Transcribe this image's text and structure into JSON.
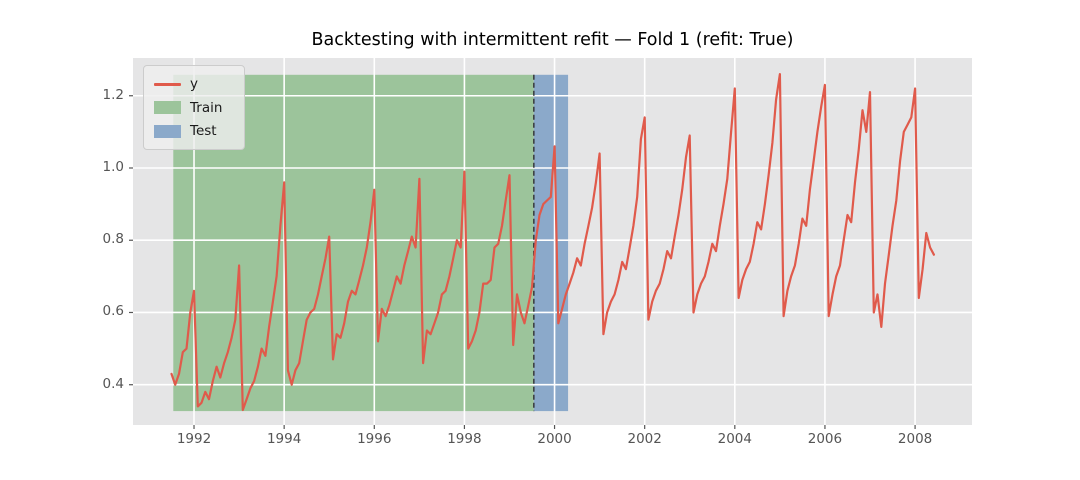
{
  "title": "Backtesting with intermittent refit — Fold 1 (refit: True)",
  "colors": {
    "figure_bg": "#ffffff",
    "plot_bg": "#e5e5e6",
    "grid": "#ffffff",
    "series": "#e05a4b",
    "train_region": "#9cc49b",
    "test_region": "#8ba9ca",
    "vline": "#3c4043",
    "tick_label": "#555555",
    "tick_mark": "#555555",
    "title_text": "#000000",
    "legend_bg": "#eeeeee",
    "legend_border": "#cccccc"
  },
  "legend": {
    "items": [
      {
        "label": "y",
        "swatch": "line",
        "color": "#e05a4b"
      },
      {
        "label": "Train",
        "swatch": "patch",
        "color": "#9cc49b"
      },
      {
        "label": "Test",
        "swatch": "patch",
        "color": "#8ba9ca"
      }
    ]
  },
  "chart_data": {
    "type": "line",
    "title": "Backtesting with intermittent refit — Fold 1 (refit: True)",
    "grid": true,
    "x_axis": {
      "ticks": [
        1992,
        1994,
        1996,
        1998,
        2000,
        2002,
        2004,
        2006,
        2008
      ],
      "lim": [
        1990.646,
        2009.263
      ]
    },
    "y_axis": {
      "tick_labels": [
        "0.4",
        "0.6",
        "0.8",
        "1.0",
        "1.2"
      ],
      "tick_values": [
        0.4,
        0.6,
        0.8,
        1.0,
        1.2
      ],
      "lim": [
        0.2885,
        1.3045
      ]
    },
    "regions": [
      {
        "name": "Train",
        "x_start": 1991.54,
        "x_end": 1999.54,
        "y_min": 0.327,
        "y_max": 1.258,
        "color": "#9cc49b"
      },
      {
        "name": "Test",
        "x_start": 1999.54,
        "x_end": 2000.3,
        "y_min": 0.327,
        "y_max": 1.258,
        "color": "#8ba9ca"
      }
    ],
    "vline": {
      "x": 1999.54,
      "style": "dashed",
      "color": "#3c4043"
    },
    "series": [
      {
        "name": "y",
        "color": "#e05a4b",
        "freq": "monthly",
        "x_start_year": 1991.5,
        "x_end_year": 2008.417,
        "values": [
          0.43,
          0.4,
          0.43,
          0.49,
          0.5,
          0.6,
          0.66,
          0.34,
          0.35,
          0.38,
          0.36,
          0.41,
          0.45,
          0.42,
          0.46,
          0.49,
          0.53,
          0.58,
          0.73,
          0.33,
          0.36,
          0.39,
          0.41,
          0.45,
          0.5,
          0.48,
          0.56,
          0.63,
          0.7,
          0.84,
          0.96,
          0.44,
          0.4,
          0.44,
          0.46,
          0.52,
          0.58,
          0.6,
          0.61,
          0.65,
          0.7,
          0.75,
          0.81,
          0.47,
          0.54,
          0.53,
          0.57,
          0.63,
          0.66,
          0.65,
          0.69,
          0.73,
          0.78,
          0.85,
          0.94,
          0.52,
          0.61,
          0.59,
          0.62,
          0.66,
          0.7,
          0.68,
          0.73,
          0.77,
          0.81,
          0.78,
          0.97,
          0.46,
          0.55,
          0.54,
          0.57,
          0.6,
          0.65,
          0.66,
          0.7,
          0.75,
          0.8,
          0.78,
          0.99,
          0.5,
          0.52,
          0.55,
          0.6,
          0.68,
          0.68,
          0.69,
          0.78,
          0.79,
          0.84,
          0.91,
          0.98,
          0.51,
          0.65,
          0.6,
          0.57,
          0.62,
          0.67,
          0.8,
          0.87,
          0.9,
          0.91,
          0.92,
          1.06,
          0.57,
          0.61,
          0.65,
          0.68,
          0.71,
          0.75,
          0.73,
          0.79,
          0.84,
          0.89,
          0.96,
          1.04,
          0.54,
          0.6,
          0.63,
          0.65,
          0.69,
          0.74,
          0.72,
          0.78,
          0.84,
          0.92,
          1.08,
          1.14,
          0.58,
          0.63,
          0.66,
          0.68,
          0.72,
          0.77,
          0.75,
          0.81,
          0.87,
          0.94,
          1.03,
          1.09,
          0.6,
          0.65,
          0.68,
          0.7,
          0.74,
          0.79,
          0.77,
          0.84,
          0.9,
          0.97,
          1.1,
          1.22,
          0.64,
          0.69,
          0.72,
          0.74,
          0.79,
          0.85,
          0.83,
          0.9,
          0.98,
          1.07,
          1.19,
          1.26,
          0.59,
          0.66,
          0.7,
          0.73,
          0.79,
          0.86,
          0.84,
          0.94,
          1.02,
          1.1,
          1.17,
          1.23,
          0.59,
          0.65,
          0.7,
          0.73,
          0.8,
          0.87,
          0.85,
          0.96,
          1.05,
          1.16,
          1.1,
          1.21,
          0.6,
          0.65,
          0.56,
          0.68,
          0.76,
          0.84,
          0.91,
          1.02,
          1.1,
          1.12,
          1.14,
          1.22,
          0.64,
          0.72,
          0.82,
          0.78,
          0.76
        ]
      }
    ]
  }
}
